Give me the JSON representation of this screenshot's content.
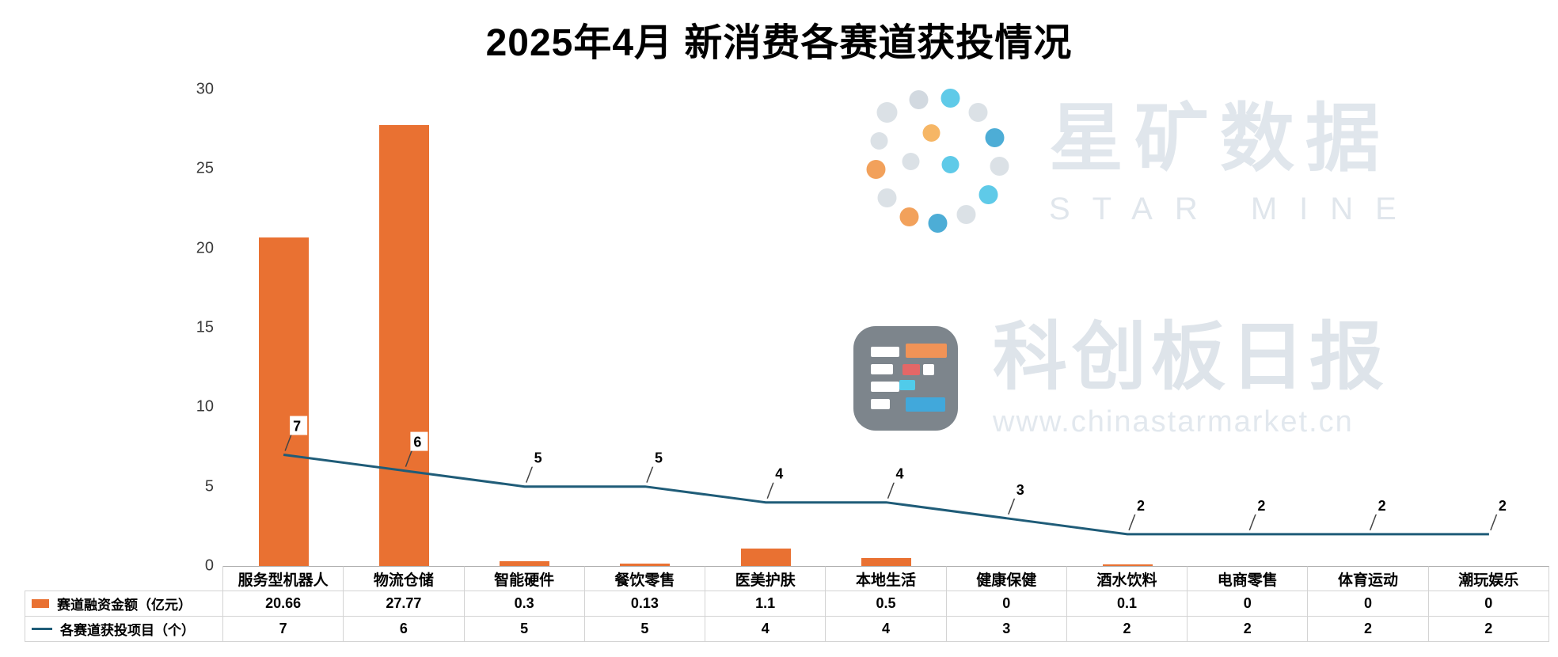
{
  "title": "2025年4月 新消费各赛道获投情况",
  "colors": {
    "bar": "#E97132",
    "line": "#1F5C78",
    "axis_text": "#3A3A3A",
    "table_border": "#D3D3D3",
    "axis_line": "#ADADAD",
    "leader_line": "#444444"
  },
  "chart_data": {
    "type": "bar",
    "subtype": "bar+line combo with data table",
    "title": "2025年4月 新消费各赛道获投情况",
    "categories": [
      "服务型机器人",
      "物流仓储",
      "智能硬件",
      "餐饮零售",
      "医美护肤",
      "本地生活",
      "健康保健",
      "酒水饮料",
      "电商零售",
      "体育运动",
      "潮玩娱乐"
    ],
    "series": [
      {
        "name": "赛道融资金额（亿元）",
        "type": "bar",
        "color": "#E97132",
        "values": [
          20.66,
          27.77,
          0.3,
          0.13,
          1.1,
          0.5,
          0,
          0.1,
          0,
          0,
          0
        ]
      },
      {
        "name": "各赛道获投项目（个）",
        "type": "line",
        "color": "#1F5C78",
        "values": [
          7,
          6,
          5,
          5,
          4,
          4,
          3,
          2,
          2,
          2,
          2
        ]
      }
    ],
    "ylim": [
      0,
      30
    ],
    "yticks": [
      0,
      5,
      10,
      15,
      20,
      25,
      30
    ],
    "grid": false,
    "legend_position": "data-table-left",
    "data_labels_on_line": true
  },
  "watermarks": {
    "starmine": {
      "cn": "星矿数据",
      "en": "STAR MINE"
    },
    "daily": {
      "cn": "科创板日报",
      "url": "www.chinastarmarket.cn"
    }
  }
}
